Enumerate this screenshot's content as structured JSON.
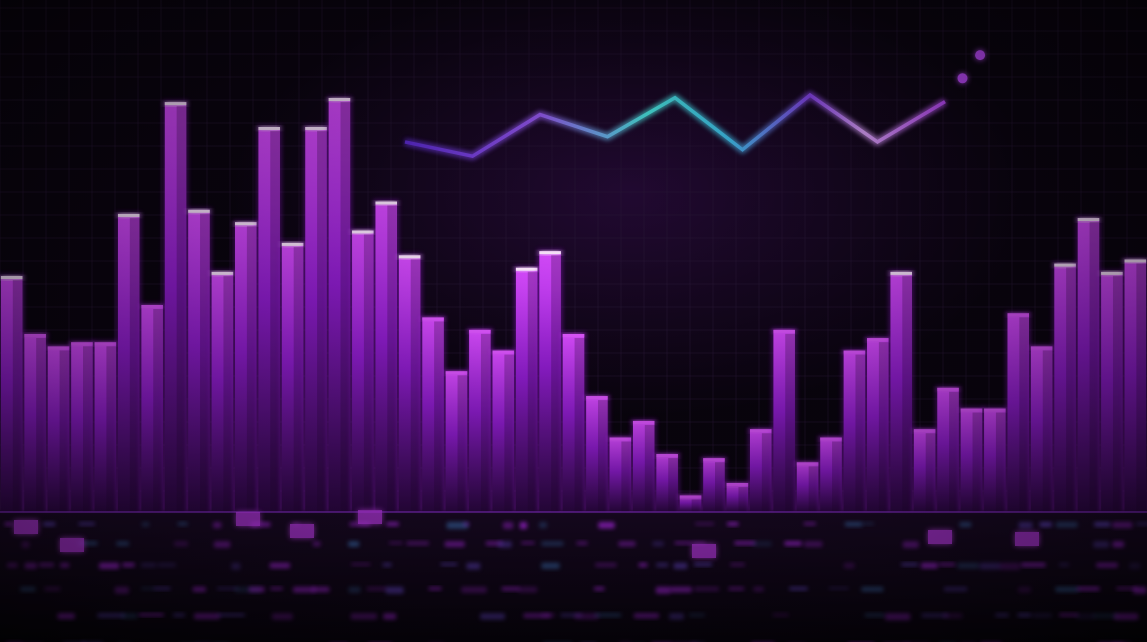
{
  "chart_data": [
    {
      "type": "bar",
      "title": "",
      "xlabel": "",
      "ylabel": "",
      "ylim": [
        0,
        100
      ],
      "grid": true,
      "values": [
        57,
        43,
        40,
        41,
        41,
        72,
        50,
        99,
        73,
        58,
        70,
        93,
        65,
        93,
        100,
        68,
        75,
        62,
        47,
        34,
        44,
        39,
        59,
        63,
        43,
        28,
        18,
        22,
        14,
        4,
        13,
        7,
        20,
        44,
        12,
        18,
        39,
        42,
        58,
        20,
        30,
        25,
        25,
        48,
        40,
        60,
        71,
        58,
        61
      ],
      "colors": {
        "bar": "#a21fe6",
        "bar_bright": "#e15cff",
        "cap": "#fff2ff",
        "background": "#060309",
        "grid": "#2a1a38"
      }
    },
    {
      "type": "line",
      "title": "",
      "ylim": [
        0,
        100
      ],
      "values": [
        37,
        26,
        58,
        41,
        71,
        31,
        73,
        37,
        68
      ],
      "trailing_dots": 2,
      "colors": {
        "start": "#7a3cf2",
        "mid": "#49f2e6",
        "end": "#c04cff"
      }
    }
  ]
}
